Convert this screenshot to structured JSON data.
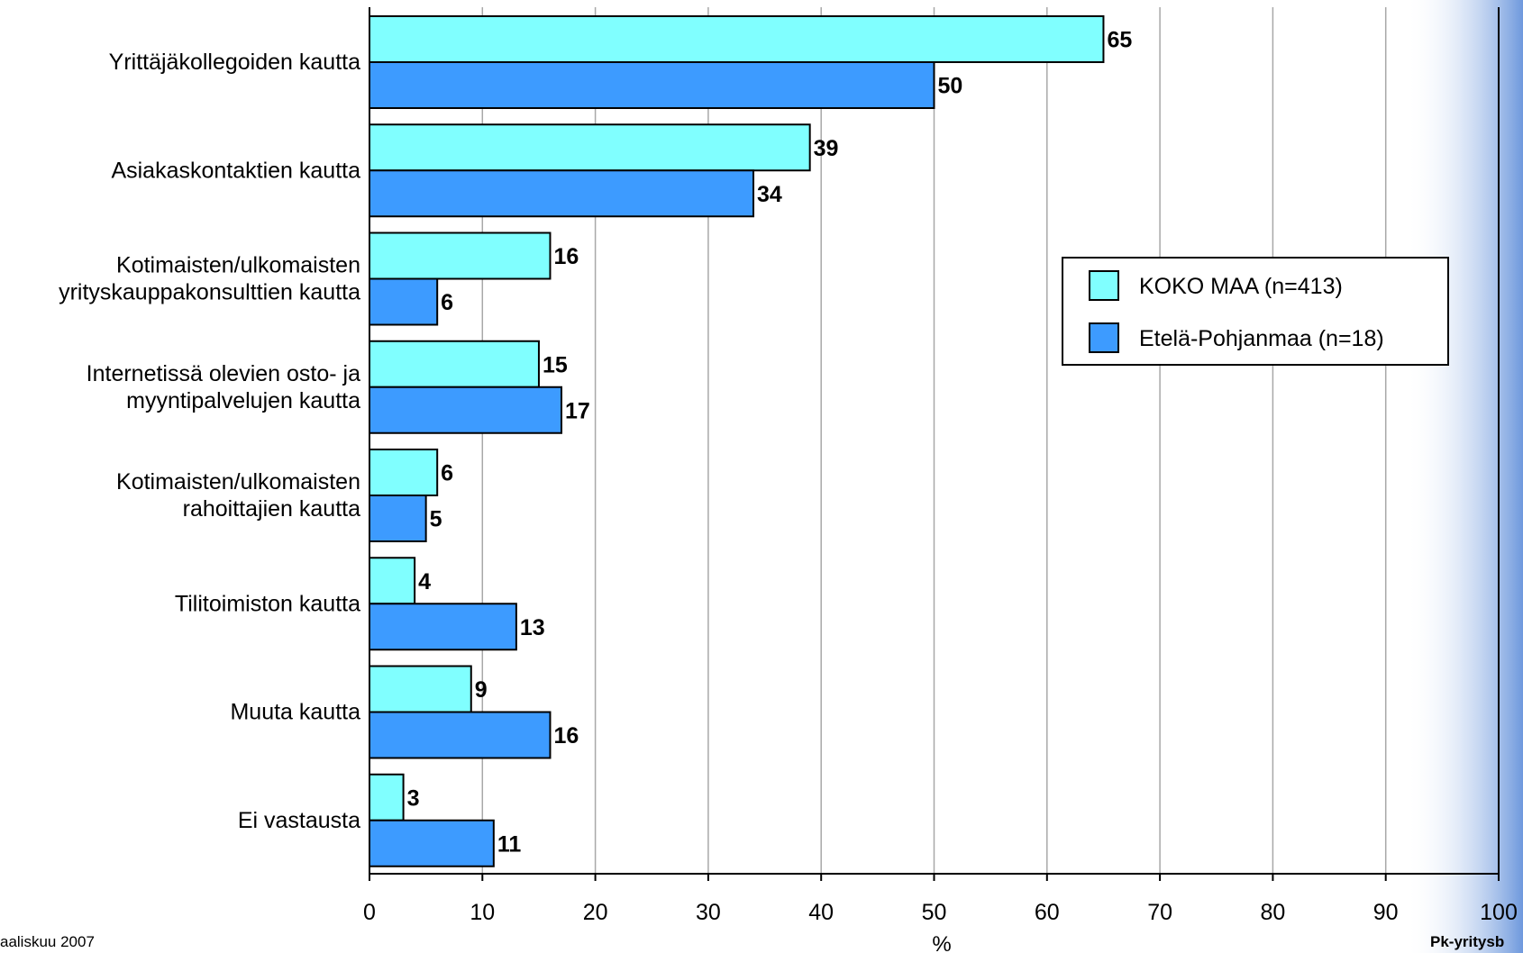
{
  "chart_data": {
    "type": "bar",
    "orientation": "horizontal",
    "categories": [
      [
        "Yrittäjäkollegoiden kautta"
      ],
      [
        "Asiakaskontaktien kautta"
      ],
      [
        "Kotimaisten/ulkomaisten",
        "yrityskauppakonsulttien kautta"
      ],
      [
        "Internetissä olevien osto- ja",
        "myyntipalvelujen kautta"
      ],
      [
        "Kotimaisten/ulkomaisten",
        "rahoittajien kautta"
      ],
      [
        "Tilitoimiston kautta"
      ],
      [
        "Muuta kautta"
      ],
      [
        "Ei vastausta"
      ]
    ],
    "series": [
      {
        "name": "KOKO MAA (n=413)",
        "color": "#80ffff",
        "values": [
          65,
          39,
          16,
          15,
          6,
          4,
          9,
          3
        ]
      },
      {
        "name": "Etelä-Pohjanmaa (n=18)",
        "color": "#3d9bff",
        "values": [
          50,
          34,
          6,
          17,
          5,
          13,
          16,
          11
        ]
      }
    ],
    "xlim": [
      0,
      100
    ],
    "xticks": [
      0,
      10,
      20,
      30,
      40,
      50,
      60,
      70,
      80,
      90,
      100
    ],
    "xlabel": "%",
    "grid": true,
    "legend_position": "right"
  },
  "footer": {
    "left": "aaliskuu 2007",
    "right": "Pk-yritysb"
  }
}
